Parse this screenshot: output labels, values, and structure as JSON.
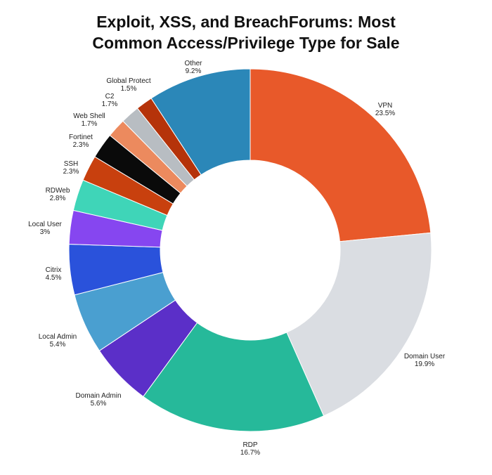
{
  "chart_data": {
    "type": "pie",
    "title_lines": [
      "Exploit, XSS, and BreachForums: Most",
      "Common Access/Privilege Type for Sale"
    ],
    "slices": [
      {
        "label": "VPN",
        "value": 23.5,
        "display": "23.5%",
        "color": "#E8592A"
      },
      {
        "label": "Domain User",
        "value": 19.9,
        "display": "19.9%",
        "color": "#DADDE2"
      },
      {
        "label": "RDP",
        "value": 16.7,
        "display": "16.7%",
        "color": "#26B99A"
      },
      {
        "label": "Domain Admin",
        "value": 5.6,
        "display": "5.6%",
        "color": "#5B2FC8"
      },
      {
        "label": "Local Admin",
        "value": 5.4,
        "display": "5.4%",
        "color": "#4A9FD0"
      },
      {
        "label": "Citrix",
        "value": 4.5,
        "display": "4.5%",
        "color": "#2A52DB"
      },
      {
        "label": "Local User",
        "value": 3,
        "display": "3%",
        "color": "#8646F0"
      },
      {
        "label": "RDWeb",
        "value": 2.8,
        "display": "2.8%",
        "color": "#3FD5B8"
      },
      {
        "label": "SSH",
        "value": 2.3,
        "display": "2.3%",
        "color": "#C8400E"
      },
      {
        "label": "Fortinet",
        "value": 2.3,
        "display": "2.3%",
        "color": "#0A0A0A"
      },
      {
        "label": "Web Shell",
        "value": 1.7,
        "display": "1.7%",
        "color": "#EC8A5E"
      },
      {
        "label": "C2",
        "value": 1.7,
        "display": "1.7%",
        "color": "#B8BDC2"
      },
      {
        "label": "Global Protect",
        "value": 1.5,
        "display": "1.5%",
        "color": "#B5330A"
      },
      {
        "label": "Other",
        "value": 9.2,
        "display": "9.2%",
        "color": "#2B87B8"
      }
    ],
    "donut": true,
    "legend": "none"
  }
}
